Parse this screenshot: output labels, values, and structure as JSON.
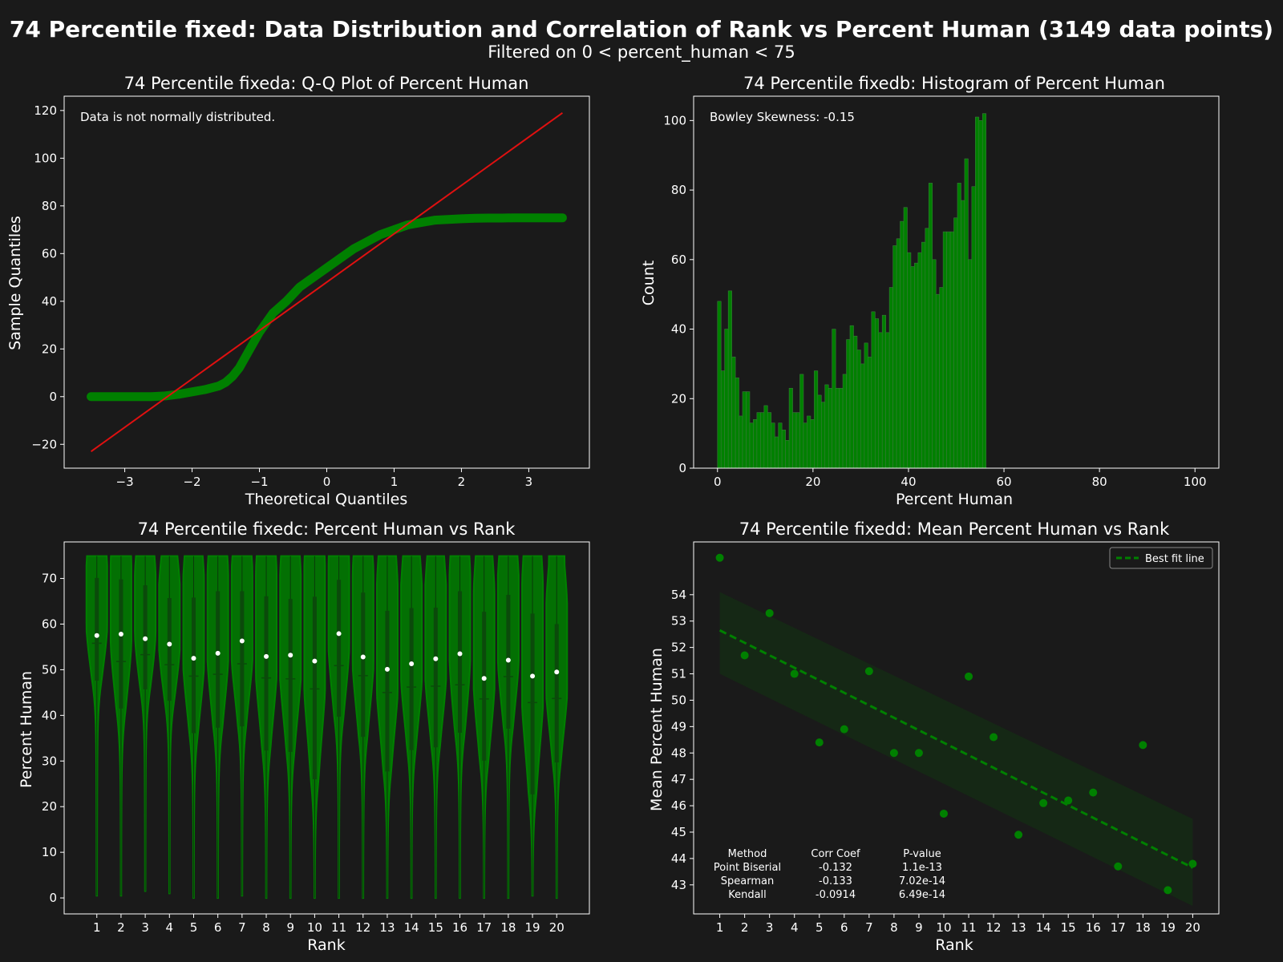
{
  "title": "74 Percentile fixed: Data Distribution and Correlation of Rank vs Percent Human (3149 data points)",
  "subtitle": "Filtered on 0 < percent_human < 75",
  "colors": {
    "background": "#1a1a1a",
    "accent": "#008000",
    "red": "#e01010",
    "band": "#152815",
    "text": "#ffffff"
  },
  "chart_data": [
    {
      "type": "scatter",
      "title": "74 Percentile fixeda: Q-Q Plot of Percent Human",
      "xlabel": "Theoretical Quantiles",
      "ylabel": "Sample Quantiles",
      "xlim": [
        -3.9,
        3.9
      ],
      "ylim": [
        -30,
        126
      ],
      "xticks": [
        -3,
        -2,
        -1,
        0,
        1,
        2,
        3
      ],
      "yticks": [
        -20,
        0,
        20,
        40,
        60,
        80,
        100,
        120
      ],
      "annotation": "Data is not normally distributed.",
      "reference_line": {
        "x": [
          -3.5,
          3.5
        ],
        "y": [
          -23,
          119
        ]
      },
      "series": [
        {
          "x": [
            -3.5,
            -3.25,
            -3.1,
            -3.0,
            -2.8,
            -2.6,
            -2.4,
            -2.2,
            -2.0,
            -1.8,
            -1.6,
            -1.5,
            -1.4,
            -1.3,
            -1.2,
            -1.1,
            -1.0,
            -0.9,
            -0.8,
            -0.6,
            -0.4,
            -0.2,
            0.0,
            0.2,
            0.4,
            0.6,
            0.8,
            1.0,
            1.2,
            1.4,
            1.6,
            1.8,
            2.0,
            2.2,
            2.4,
            2.6,
            2.8,
            3.0,
            3.1,
            3.25,
            3.5
          ],
          "y": [
            0,
            0,
            0,
            0,
            0,
            0,
            0.3,
            1.0,
            2.0,
            3.0,
            4.5,
            6.0,
            8.5,
            12.0,
            17.0,
            22.0,
            27.0,
            31.0,
            35.0,
            40.0,
            46.0,
            50.0,
            54.0,
            58.0,
            62.0,
            65.0,
            68.0,
            70.0,
            72.0,
            73.0,
            74.0,
            74.3,
            74.6,
            74.8,
            74.9,
            74.9,
            75.0,
            75.0,
            75.0,
            75.0,
            75.0
          ]
        }
      ]
    },
    {
      "type": "bar",
      "title": "74 Percentile fixedb: Histogram of Percent Human",
      "xlabel": "Percent Human",
      "ylabel": "Count",
      "xlim": [
        -5,
        105
      ],
      "ylim": [
        0,
        107
      ],
      "xticks": [
        0,
        20,
        40,
        60,
        80,
        100
      ],
      "yticks": [
        0,
        20,
        40,
        60,
        80,
        100
      ],
      "annotation": "Bowley Skewness: -0.15",
      "bin_start": 0,
      "bin_width": 0.75,
      "values": [
        48,
        28,
        40,
        51,
        32,
        26,
        15,
        22,
        22,
        13,
        14,
        16,
        16,
        18,
        16,
        13,
        9,
        13,
        11,
        8,
        23,
        16,
        16,
        27,
        13,
        15,
        14,
        28,
        21,
        19,
        24,
        23,
        40,
        23,
        23,
        27,
        37,
        41,
        38,
        34,
        30,
        36,
        32,
        45,
        43,
        39,
        44,
        39,
        52,
        64,
        66,
        71,
        75,
        62,
        58,
        59,
        62,
        65,
        69,
        82,
        60,
        50,
        52,
        68,
        68,
        68,
        72,
        82,
        77,
        89,
        60,
        81,
        101,
        100,
        102
      ]
    },
    {
      "type": "violin",
      "title": "74 Percentile fixedc: Percent Human vs Rank",
      "xlabel": "Rank",
      "ylabel": "Percent Human",
      "ylim": [
        -3.5,
        78
      ],
      "yticks": [
        0,
        10,
        20,
        30,
        40,
        50,
        60,
        70
      ],
      "categories": [
        "1",
        "2",
        "3",
        "4",
        "5",
        "6",
        "7",
        "8",
        "9",
        "10",
        "11",
        "12",
        "13",
        "14",
        "15",
        "16",
        "17",
        "18",
        "19",
        "20"
      ],
      "means": [
        57.5,
        57.8,
        56.8,
        55.6,
        52.5,
        53.6,
        56.3,
        52.9,
        53.2,
        51.9,
        57.9,
        52.8,
        50.1,
        51.3,
        52.4,
        53.5,
        48.1,
        52.1,
        48.6,
        49.5
      ],
      "medians": [
        55.8,
        51.8,
        53.3,
        51.1,
        48.6,
        49.0,
        51.3,
        48.2,
        48.0,
        45.8,
        50.9,
        48.7,
        45.0,
        46.2,
        46.4,
        46.7,
        43.6,
        48.5,
        42.8,
        43.7
      ],
      "q1": [
        47.6,
        41.5,
        45.7,
        43.2,
        36.1,
        37.3,
        37.6,
        32.3,
        32.0,
        26.0,
        39.7,
        35.3,
        27.7,
        32.4,
        33.0,
        36.2,
        30.1,
        37.1,
        22.7,
        29.7
      ],
      "q3": [
        70.1,
        69.8,
        68.5,
        65.7,
        65.8,
        67.2,
        67.2,
        66.1,
        65.5,
        66.0,
        69.7,
        66.9,
        62.9,
        63.5,
        63.6,
        67.2,
        62.7,
        66.4,
        62.3,
        60.0
      ],
      "min": [
        0.5,
        0.5,
        1.5,
        1,
        0,
        0,
        0.5,
        0,
        0,
        0,
        0,
        0,
        0,
        0,
        0,
        0,
        0,
        0,
        0.5,
        0
      ],
      "max": [
        74.9,
        74.9,
        74.9,
        74.9,
        74.9,
        74.9,
        74.9,
        74.9,
        74.9,
        74.9,
        74.9,
        74.9,
        74.9,
        74.9,
        74.9,
        74.9,
        74.9,
        74.9,
        74.9,
        74.9
      ]
    },
    {
      "type": "scatter",
      "title": "74 Percentile fixedd: Mean Percent Human vs Rank",
      "xlabel": "Rank",
      "ylabel": "Mean Percent Human",
      "xlim": [
        -0.05,
        21.05
      ],
      "ylim": [
        41.9,
        56.0
      ],
      "yticks": [
        43,
        44,
        45,
        46,
        47,
        48,
        49,
        50,
        51,
        52,
        53,
        54
      ],
      "categories": [
        "1",
        "2",
        "3",
        "4",
        "5",
        "6",
        "7",
        "8",
        "9",
        "10",
        "11",
        "12",
        "13",
        "14",
        "15",
        "16",
        "17",
        "18",
        "19",
        "20"
      ],
      "x": [
        1,
        2,
        3,
        4,
        5,
        6,
        7,
        8,
        9,
        10,
        11,
        12,
        13,
        14,
        15,
        16,
        17,
        18,
        19,
        20
      ],
      "y": [
        55.4,
        51.7,
        53.3,
        51.0,
        48.4,
        48.9,
        51.1,
        48.0,
        48.0,
        45.7,
        50.9,
        48.6,
        44.9,
        46.1,
        46.2,
        46.5,
        43.7,
        48.3,
        42.8,
        43.8
      ],
      "fit_line": {
        "x": [
          1,
          20
        ],
        "y": [
          52.65,
          43.65
        ]
      },
      "ci_band": {
        "x": [
          1,
          20
        ],
        "upper": [
          54.1,
          45.5
        ],
        "lower": [
          51.0,
          42.2
        ]
      },
      "legend": {
        "label": "Best fit line",
        "position": "top-right"
      },
      "stats_table": {
        "headers": [
          "Method",
          "Corr Coef",
          "P-value"
        ],
        "rows": [
          [
            "Point Biserial",
            "-0.132",
            "1.1e-13"
          ],
          [
            "Spearman",
            "-0.133",
            "7.02e-14"
          ],
          [
            "Kendall",
            "-0.0914",
            "6.49e-14"
          ]
        ]
      }
    }
  ]
}
